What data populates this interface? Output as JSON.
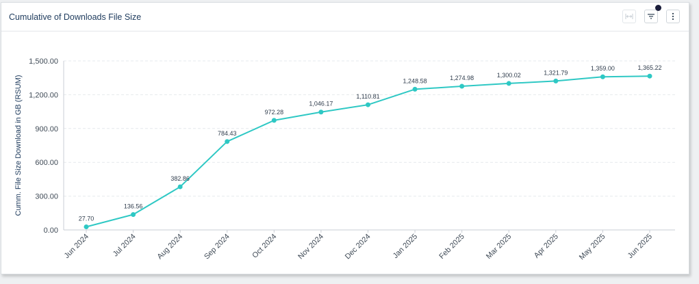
{
  "card": {
    "title": "Cumulative of Downloads File Size"
  },
  "toolbar": {
    "expand_icon": "expand-horizontal-icon",
    "filter_icon": "filter-lines-icon",
    "more_icon": "vertical-ellipsis-icon",
    "filter_active": true
  },
  "colors": {
    "line": "#2ec8c4",
    "title": "#1d3a5c",
    "grid": "#e6e9ec",
    "filter_badge": "#1a1d3a"
  },
  "chart_data": {
    "type": "line",
    "title": "",
    "xlabel": "",
    "ylabel": "Cumm. File Size Download in GB (RSUM)",
    "categories": [
      "Jun 2024",
      "Jul 2024",
      "Aug 2024",
      "Sep 2024",
      "Oct 2024",
      "Nov 2024",
      "Dec 2024",
      "Jan 2025",
      "Feb 2025",
      "Mar 2025",
      "Apr 2025",
      "May 2025",
      "Jun 2025"
    ],
    "values": [
      27.7,
      136.56,
      382.86,
      784.43,
      972.28,
      1046.17,
      1110.81,
      1248.58,
      1274.98,
      1300.02,
      1321.79,
      1359.0,
      1365.22
    ],
    "value_labels": [
      "27.70",
      "136.56",
      "382.86",
      "784.43",
      "972.28",
      "1,046.17",
      "1,110.81",
      "1,248.58",
      "1,274.98",
      "1,300.02",
      "1,321.79",
      "1,359.00",
      "1,365.22"
    ],
    "ylim": [
      0,
      1500
    ],
    "yticks": [
      0,
      300,
      600,
      900,
      1200,
      1500
    ],
    "ytick_labels": [
      "0.00",
      "300.00",
      "600.00",
      "900.00",
      "1,200.00",
      "1,500.00"
    ],
    "grid": true,
    "legend": "none"
  }
}
